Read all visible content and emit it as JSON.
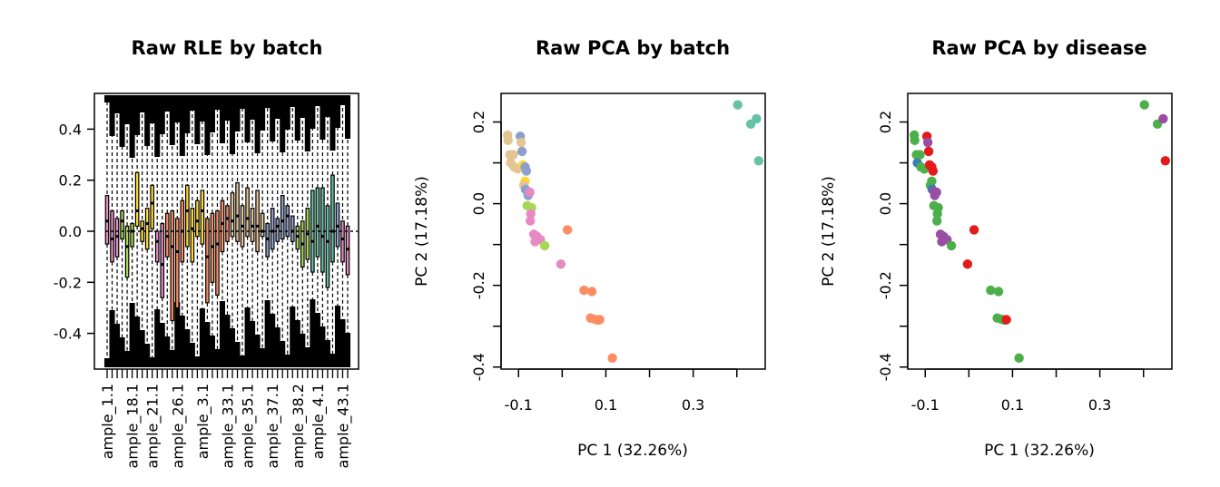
{
  "colors": {
    "batch": [
      "#E78AC3",
      "#A6D854",
      "#FFD92F",
      "#FC8D62",
      "#E5C494",
      "#8DA0CB",
      "#66C2A5"
    ],
    "disease": [
      "#4DAF4A",
      "#E41A1C",
      "#984EA3",
      "#377EB8"
    ]
  },
  "chart_data": [
    {
      "type": "boxplot",
      "title": "Raw RLE by batch",
      "xlabel": "",
      "ylabel": "",
      "ylim": [
        -0.54,
        0.54
      ],
      "yticks": [
        -0.4,
        -0.2,
        0.0,
        0.2,
        0.4
      ],
      "ytick_labels": [
        "-0.4",
        "-0.2",
        "0.0",
        "0.2",
        "0.4"
      ],
      "xtick_labels": [
        "ample_1.1",
        "ample_18.1",
        "ample_21.1",
        "ample_26.1",
        "ample_3.1",
        "ample_33.1",
        "ample_35.1",
        "ample_37.1",
        "ample_38.2",
        "ample_4.1",
        "ample_43.1"
      ],
      "n_samples": 49,
      "boxes": [
        {
          "q1": -0.05,
          "q3": 0.14,
          "median": 0.04,
          "batch": 0
        },
        {
          "q1": -0.12,
          "q3": 0.08,
          "median": -0.03,
          "batch": 0
        },
        {
          "q1": -0.1,
          "q3": 0.05,
          "median": -0.02,
          "batch": 0
        },
        {
          "q1": -0.03,
          "q3": 0.08,
          "median": 0.04,
          "batch": 1
        },
        {
          "q1": -0.18,
          "q3": 0.02,
          "median": -0.06,
          "batch": 1
        },
        {
          "q1": -0.06,
          "q3": 0.03,
          "median": 0.0,
          "batch": 1
        },
        {
          "q1": 0.02,
          "q3": 0.23,
          "median": 0.08,
          "batch": 2
        },
        {
          "q1": -0.04,
          "q3": 0.04,
          "median": 0.01,
          "batch": 2
        },
        {
          "q1": -0.07,
          "q3": 0.09,
          "median": 0.03,
          "batch": 2
        },
        {
          "q1": 0.01,
          "q3": 0.18,
          "median": 0.11,
          "batch": 2
        },
        {
          "q1": -0.12,
          "q3": 0.0,
          "median": -0.04,
          "batch": 0
        },
        {
          "q1": -0.26,
          "q3": 0.03,
          "median": -0.13,
          "batch": 0
        },
        {
          "q1": -0.1,
          "q3": 0.07,
          "median": -0.02,
          "batch": 3
        },
        {
          "q1": -0.35,
          "q3": 0.08,
          "median": -0.06,
          "batch": 3
        },
        {
          "q1": -0.3,
          "q3": 0.05,
          "median": -0.08,
          "batch": 3
        },
        {
          "q1": -0.12,
          "q3": 0.12,
          "median": 0.0,
          "batch": 3
        },
        {
          "q1": -0.06,
          "q3": 0.18,
          "median": 0.08,
          "batch": 2
        },
        {
          "q1": -0.12,
          "q3": 0.09,
          "median": 0.01,
          "batch": 2
        },
        {
          "q1": -0.02,
          "q3": 0.12,
          "median": 0.04,
          "batch": 2
        },
        {
          "q1": -0.05,
          "q3": 0.16,
          "median": 0.08,
          "batch": 2
        },
        {
          "q1": -0.28,
          "q3": 0.05,
          "median": -0.1,
          "batch": 3
        },
        {
          "q1": -0.2,
          "q3": 0.07,
          "median": -0.06,
          "batch": 3
        },
        {
          "q1": -0.25,
          "q3": 0.08,
          "median": -0.05,
          "batch": 3
        },
        {
          "q1": -0.08,
          "q3": 0.12,
          "median": 0.03,
          "batch": 3
        },
        {
          "q1": -0.04,
          "q3": 0.1,
          "median": 0.05,
          "batch": 3
        },
        {
          "q1": -0.02,
          "q3": 0.15,
          "median": 0.04,
          "batch": 4
        },
        {
          "q1": -0.04,
          "q3": 0.19,
          "median": 0.06,
          "batch": 4
        },
        {
          "q1": -0.06,
          "q3": 0.1,
          "median": 0.02,
          "batch": 4
        },
        {
          "q1": -0.02,
          "q3": 0.17,
          "median": 0.05,
          "batch": 4
        },
        {
          "q1": -0.04,
          "q3": 0.09,
          "median": 0.02,
          "batch": 4
        },
        {
          "q1": -0.08,
          "q3": 0.16,
          "median": 0.02,
          "batch": 4
        },
        {
          "q1": -0.02,
          "q3": 0.07,
          "median": 0.0,
          "batch": 4
        },
        {
          "q1": -0.1,
          "q3": 0.03,
          "median": -0.03,
          "batch": 5
        },
        {
          "q1": -0.07,
          "q3": 0.09,
          "median": 0.0,
          "batch": 5
        },
        {
          "q1": -0.04,
          "q3": 0.05,
          "median": 0.02,
          "batch": 5
        },
        {
          "q1": -0.03,
          "q3": 0.14,
          "median": 0.04,
          "batch": 5
        },
        {
          "q1": -0.02,
          "q3": 0.1,
          "median": 0.06,
          "batch": 5
        },
        {
          "q1": -0.04,
          "q3": 0.06,
          "median": 0.0,
          "batch": 5
        },
        {
          "q1": -0.07,
          "q3": 0.02,
          "median": -0.02,
          "batch": 1
        },
        {
          "q1": -0.14,
          "q3": 0.04,
          "median": -0.05,
          "batch": 1
        },
        {
          "q1": -0.11,
          "q3": 0.09,
          "median": -0.01,
          "batch": 1
        },
        {
          "q1": -0.16,
          "q3": 0.16,
          "median": -0.04,
          "batch": 6
        },
        {
          "q1": -0.1,
          "q3": 0.17,
          "median": 0.02,
          "batch": 6
        },
        {
          "q1": -0.16,
          "q3": 0.17,
          "median": -0.02,
          "batch": 6
        },
        {
          "q1": -0.22,
          "q3": 0.1,
          "median": -0.04,
          "batch": 6
        },
        {
          "q1": -0.12,
          "q3": 0.22,
          "median": 0.0,
          "batch": 6
        },
        {
          "q1": -0.06,
          "q3": 0.11,
          "median": 0.02,
          "batch": 5
        },
        {
          "q1": -0.12,
          "q3": 0.04,
          "median": -0.03,
          "batch": 0
        },
        {
          "q1": -0.17,
          "q3": 0.02,
          "median": -0.07,
          "batch": 0
        }
      ]
    },
    {
      "type": "scatter",
      "title": "Raw PCA by batch",
      "xlabel": "PC 1 (32.26%)",
      "ylabel": "PC 2 (17.18%)",
      "xlim": [
        -0.14,
        0.465
      ],
      "ylim": [
        -0.405,
        0.27
      ],
      "xticks": [
        -0.1,
        0.0,
        0.1,
        0.2,
        0.3,
        0.4
      ],
      "xtick_labels": [
        "-0.1",
        "",
        "0.1",
        "",
        "0.3",
        ""
      ],
      "yticks": [
        -0.4,
        -0.3,
        -0.2,
        -0.1,
        0.0,
        0.1,
        0.2
      ],
      "ytick_labels": [
        "-0.4",
        "",
        "-0.2",
        "",
        "0.0",
        "",
        "0.2"
      ],
      "points": [
        {
          "x": -0.125,
          "y": 0.168,
          "batch": 4,
          "disease": 0
        },
        {
          "x": -0.124,
          "y": 0.155,
          "batch": 4,
          "disease": 0
        },
        {
          "x": -0.12,
          "y": 0.12,
          "batch": 4,
          "disease": 0
        },
        {
          "x": -0.118,
          "y": 0.1,
          "batch": 4,
          "disease": 3
        },
        {
          "x": -0.112,
          "y": 0.12,
          "batch": 4,
          "disease": 0
        },
        {
          "x": -0.11,
          "y": 0.09,
          "batch": 4,
          "disease": 0
        },
        {
          "x": -0.102,
          "y": 0.085,
          "batch": 4,
          "disease": 0
        },
        {
          "x": -0.096,
          "y": 0.165,
          "batch": 5,
          "disease": 1
        },
        {
          "x": -0.094,
          "y": 0.15,
          "batch": 4,
          "disease": 2
        },
        {
          "x": -0.092,
          "y": 0.128,
          "batch": 5,
          "disease": 1
        },
        {
          "x": -0.09,
          "y": 0.095,
          "batch": 2,
          "disease": 1
        },
        {
          "x": -0.085,
          "y": 0.09,
          "batch": 5,
          "disease": 1
        },
        {
          "x": -0.082,
          "y": 0.08,
          "batch": 5,
          "disease": 1
        },
        {
          "x": -0.085,
          "y": 0.055,
          "batch": 2,
          "disease": 0
        },
        {
          "x": -0.088,
          "y": 0.045,
          "batch": 4,
          "disease": 0
        },
        {
          "x": -0.084,
          "y": 0.035,
          "batch": 5,
          "disease": 3
        },
        {
          "x": -0.08,
          "y": 0.03,
          "batch": 5,
          "disease": 2
        },
        {
          "x": -0.078,
          "y": 0.02,
          "batch": 5,
          "disease": 2
        },
        {
          "x": -0.074,
          "y": 0.028,
          "batch": 0,
          "disease": 2
        },
        {
          "x": -0.08,
          "y": -0.005,
          "batch": 1,
          "disease": 0
        },
        {
          "x": -0.07,
          "y": -0.01,
          "batch": 1,
          "disease": 0
        },
        {
          "x": -0.072,
          "y": -0.025,
          "batch": 0,
          "disease": 0
        },
        {
          "x": -0.073,
          "y": -0.042,
          "batch": 0,
          "disease": 0
        },
        {
          "x": -0.065,
          "y": -0.075,
          "batch": 0,
          "disease": 2
        },
        {
          "x": -0.062,
          "y": -0.093,
          "batch": 0,
          "disease": 2
        },
        {
          "x": -0.058,
          "y": -0.08,
          "batch": 0,
          "disease": 2
        },
        {
          "x": -0.05,
          "y": -0.088,
          "batch": 0,
          "disease": 2
        },
        {
          "x": -0.04,
          "y": -0.103,
          "batch": 1,
          "disease": 0
        },
        {
          "x": -0.003,
          "y": -0.148,
          "batch": 0,
          "disease": 1
        },
        {
          "x": 0.012,
          "y": -0.064,
          "batch": 3,
          "disease": 1
        },
        {
          "x": 0.05,
          "y": -0.212,
          "batch": 3,
          "disease": 0
        },
        {
          "x": 0.068,
          "y": -0.215,
          "batch": 3,
          "disease": 0
        },
        {
          "x": 0.065,
          "y": -0.28,
          "batch": 3,
          "disease": 0
        },
        {
          "x": 0.075,
          "y": -0.283,
          "batch": 3,
          "disease": 0
        },
        {
          "x": 0.082,
          "y": -0.285,
          "batch": 3,
          "disease": 0
        },
        {
          "x": 0.086,
          "y": -0.284,
          "batch": 3,
          "disease": 1
        },
        {
          "x": 0.115,
          "y": -0.378,
          "batch": 3,
          "disease": 0
        },
        {
          "x": 0.402,
          "y": 0.242,
          "batch": 6,
          "disease": 0
        },
        {
          "x": 0.432,
          "y": 0.195,
          "batch": 6,
          "disease": 0
        },
        {
          "x": 0.445,
          "y": 0.208,
          "batch": 6,
          "disease": 2
        },
        {
          "x": 0.45,
          "y": 0.105,
          "batch": 6,
          "disease": 1
        }
      ]
    },
    {
      "type": "scatter",
      "title": "Raw PCA by disease",
      "xlabel": "PC 1 (32.26%)",
      "ylabel": "PC 2 (17.18%)",
      "xlim": [
        -0.14,
        0.465
      ],
      "ylim": [
        -0.405,
        0.27
      ],
      "xticks": [
        -0.1,
        0.0,
        0.1,
        0.2,
        0.3,
        0.4
      ],
      "xtick_labels": [
        "-0.1",
        "",
        "0.1",
        "",
        "0.3",
        ""
      ],
      "yticks": [
        -0.4,
        -0.3,
        -0.2,
        -0.1,
        0.0,
        0.1,
        0.2
      ],
      "ytick_labels": [
        "-0.4",
        "",
        "-0.2",
        "",
        "0.0",
        "",
        "0.2"
      ],
      "points_ref": "same as Raw PCA by batch, coloured by disease"
    }
  ]
}
